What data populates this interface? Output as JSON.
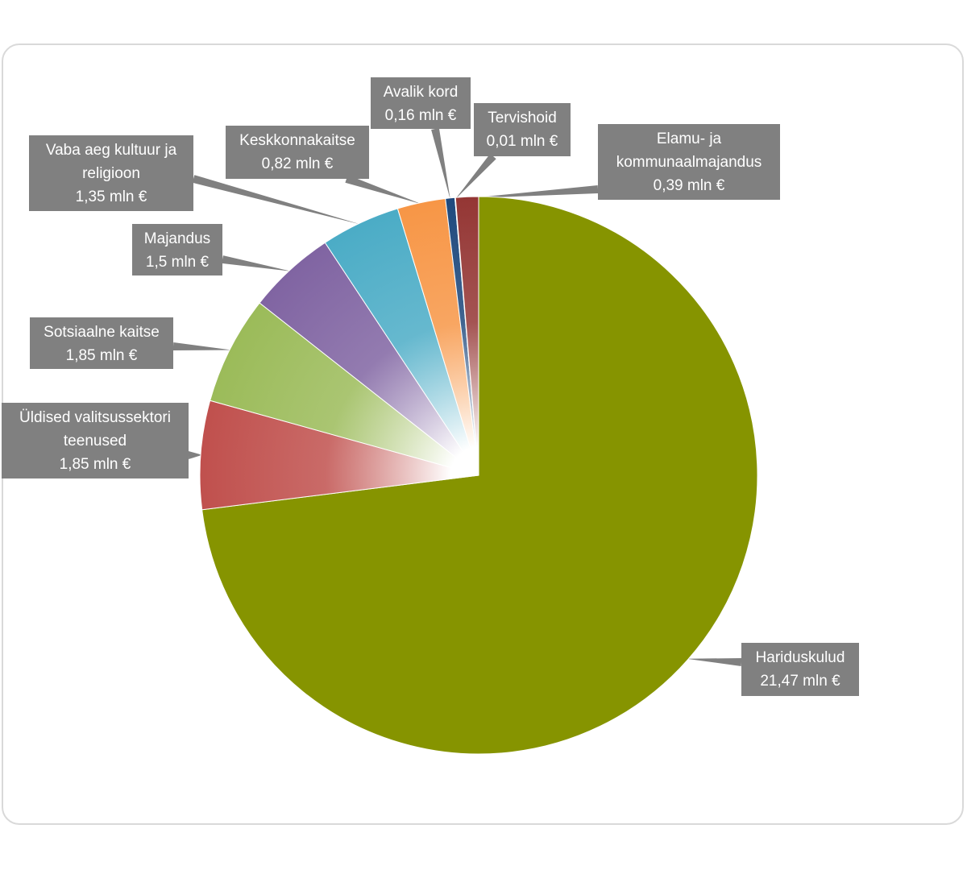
{
  "chart_data": {
    "type": "pie",
    "title": "",
    "unit": "mln €",
    "slices": [
      {
        "label": "Hariduskulud",
        "value": 21.47,
        "value_label": "21,47 mln €",
        "color": "#869400"
      },
      {
        "label": "Üldised valitsussektori teenused",
        "value": 1.85,
        "value_label": "1,85 mln €",
        "color": "#c0504d"
      },
      {
        "label": "Sotsiaalne kaitse",
        "value": 1.85,
        "value_label": "1,85 mln €",
        "color": "#9bbb59"
      },
      {
        "label": "Majandus",
        "value": 1.5,
        "value_label": "1,5 mln €",
        "color": "#8064a2"
      },
      {
        "label": "Vaba aeg kultuur ja religioon",
        "value": 1.35,
        "value_label": "1,35 mln €",
        "color": "#4bacc6"
      },
      {
        "label": "Keskkonnakaitse",
        "value": 0.82,
        "value_label": "0,82 mln €",
        "color": "#f79646"
      },
      {
        "label": "Avalik kord",
        "value": 0.16,
        "value_label": "0,16 mln €",
        "color": "#1f497d"
      },
      {
        "label": "Tervishoid",
        "value": 0.01,
        "value_label": "0,01 mln €",
        "color": "#4f81bd"
      },
      {
        "label": "Elamu- ja kommunaalmajandus",
        "value": 0.39,
        "value_label": "0,39 mln €",
        "color": "#943634"
      }
    ],
    "callout_text": [
      "Hariduskulud",
      "Üldised valitsussektori\nteenused",
      "Sotsiaalne kaitse",
      "Majandus",
      "Vaba aeg kultuur ja\nreligioon",
      "Keskkonnakaitse",
      "Avalik kord",
      "Tervishoid",
      "Elamu- ja\nkommunaalmajandus"
    ],
    "legend": "none",
    "label_style": "callouts"
  }
}
